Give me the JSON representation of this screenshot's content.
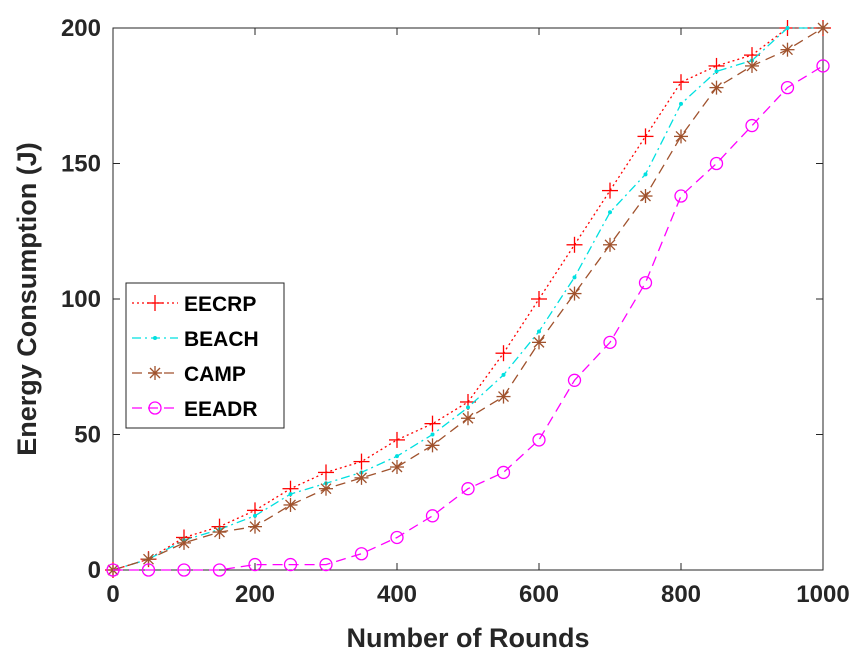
{
  "chart_data": {
    "type": "line",
    "title": "",
    "xlabel": "Number of Rounds",
    "ylabel": "Energy Consumption (J)",
    "xlim": [
      0,
      1000
    ],
    "ylim": [
      0,
      200
    ],
    "xticks": [
      "0",
      "200",
      "400",
      "600",
      "800",
      "1000"
    ],
    "yticks": [
      "0",
      "50",
      "100",
      "150",
      "200"
    ],
    "grid": false,
    "legend_position": "left-middle",
    "x": [
      0,
      50,
      100,
      150,
      200,
      250,
      300,
      350,
      400,
      450,
      500,
      550,
      600,
      650,
      700,
      750,
      800,
      850,
      900,
      950,
      1000
    ],
    "series": [
      {
        "name": "EECRP",
        "color": "#ff0000",
        "marker": "plus",
        "line": "dotted",
        "values": [
          0,
          4,
          12,
          16,
          22,
          30,
          36,
          40,
          48,
          54,
          62,
          80,
          100,
          120,
          140,
          160,
          180,
          186,
          190,
          200,
          200
        ]
      },
      {
        "name": "BEACH",
        "color": "#00e0e0",
        "marker": "dot",
        "line": "dashdot",
        "values": [
          0,
          4,
          11,
          15,
          20,
          28,
          32,
          36,
          42,
          50,
          60,
          72,
          88,
          108,
          132,
          146,
          172,
          184,
          188,
          200,
          200
        ]
      },
      {
        "name": "CAMP",
        "color": "#a0522d",
        "marker": "asterisk",
        "line": "dashed",
        "values": [
          0,
          4,
          10,
          14,
          16,
          24,
          30,
          34,
          38,
          46,
          56,
          64,
          84,
          102,
          120,
          138,
          160,
          178,
          186,
          192,
          200
        ]
      },
      {
        "name": "EEADR",
        "color": "#ff00ff",
        "marker": "circle",
        "line": "dashed",
        "values": [
          0,
          0,
          0,
          0,
          2,
          2,
          2,
          6,
          12,
          20,
          30,
          36,
          48,
          70,
          84,
          106,
          138,
          150,
          164,
          178,
          186
        ]
      }
    ]
  }
}
